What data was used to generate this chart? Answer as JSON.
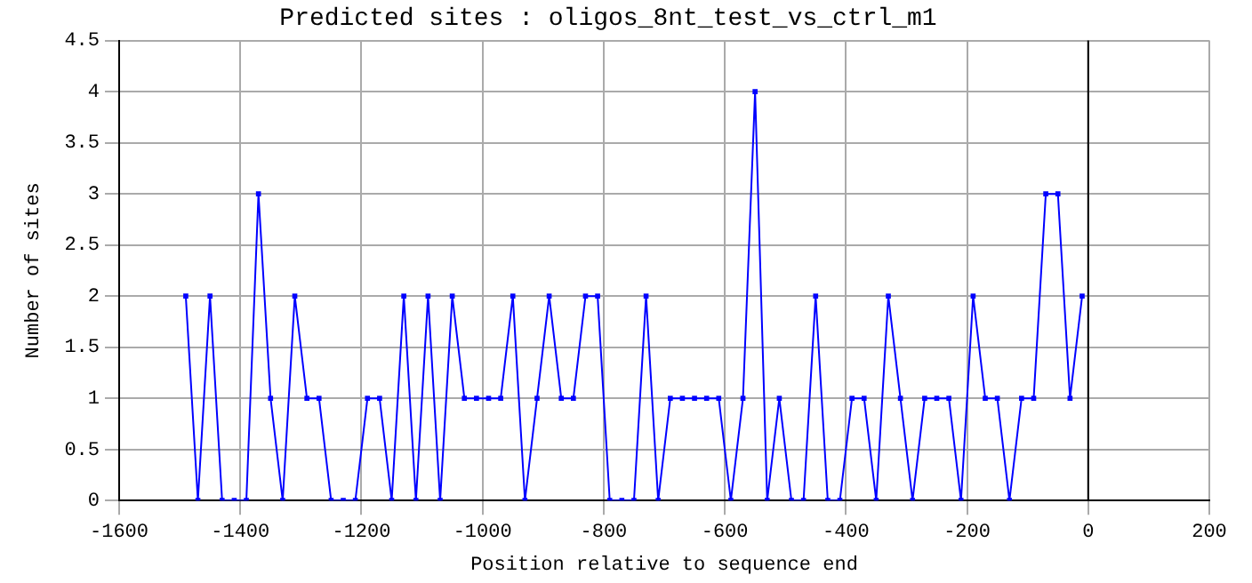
{
  "chart_data": {
    "type": "line",
    "title": "Predicted sites : oligos_8nt_test_vs_ctrl_m1",
    "xlabel": "Position relative to sequence end",
    "ylabel": "Number of sites",
    "x": [
      -1490,
      -1470,
      -1450,
      -1430,
      -1410,
      -1390,
      -1370,
      -1350,
      -1330,
      -1310,
      -1290,
      -1270,
      -1250,
      -1230,
      -1210,
      -1190,
      -1170,
      -1150,
      -1130,
      -1110,
      -1090,
      -1070,
      -1050,
      -1030,
      -1010,
      -990,
      -970,
      -950,
      -930,
      -910,
      -890,
      -870,
      -850,
      -830,
      -810,
      -790,
      -770,
      -750,
      -730,
      -710,
      -690,
      -670,
      -650,
      -630,
      -610,
      -590,
      -570,
      -550,
      -530,
      -510,
      -490,
      -470,
      -450,
      -430,
      -410,
      -390,
      -370,
      -350,
      -330,
      -310,
      -290,
      -270,
      -250,
      -230,
      -210,
      -190,
      -170,
      -150,
      -130,
      -110,
      -90,
      -70,
      -50,
      -30,
      -10
    ],
    "series": [
      {
        "color": "#0000ff",
        "values": [
          2,
          0,
          2,
          0,
          0,
          0,
          3,
          1,
          0,
          2,
          1,
          1,
          0,
          0,
          0,
          1,
          1,
          0,
          2,
          0,
          2,
          0,
          2,
          1,
          1,
          1,
          1,
          2,
          0,
          1,
          2,
          1,
          1,
          2,
          2,
          0,
          0,
          0,
          2,
          0,
          1,
          1,
          1,
          1,
          1,
          0,
          1,
          4,
          0,
          1,
          0,
          0,
          2,
          0,
          0,
          1,
          1,
          0,
          2,
          1,
          0,
          1,
          1,
          1,
          0,
          2,
          1,
          1,
          0,
          1,
          1,
          3,
          3,
          1,
          2
        ]
      }
    ],
    "xlim": [
      -1600,
      200
    ],
    "xticks": [
      -1600,
      -1400,
      -1200,
      -1000,
      -800,
      -600,
      -400,
      -200,
      0,
      200
    ],
    "ylim": [
      0,
      4.5
    ],
    "yticks": [
      0,
      0.5,
      1,
      1.5,
      2,
      2.5,
      3,
      3.5,
      4,
      4.5
    ],
    "ref_lines": [
      {
        "axis": "x",
        "value": 0,
        "color": "#000000"
      }
    ],
    "grid": true,
    "legend": false,
    "marker": "square",
    "line_style": "solid"
  }
}
